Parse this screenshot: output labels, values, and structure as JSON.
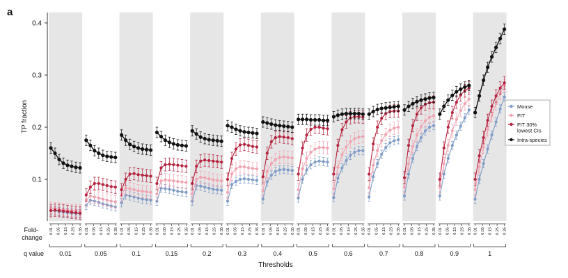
{
  "panel_label": "a",
  "chart_data": {
    "type": "line",
    "title": "",
    "ylabel": "TP fraction",
    "xlabel": "Thresholds",
    "ylim": [
      0.02,
      0.42
    ],
    "yticks": [
      0.1,
      0.2,
      0.3,
      0.4
    ],
    "ytick_labels": [
      "0.1",
      "0.2",
      "0.3",
      "0.4"
    ],
    "grid": false,
    "legend_position": "right",
    "row_labels": {
      "fold_change": "Fold-\nchange",
      "q_value": "q value"
    },
    "fold_change_labels": [
      "0.01",
      "0.05",
      "0.15",
      "0.25",
      "0.35"
    ],
    "q_values": [
      "0.01",
      "0.05",
      "0.1",
      "0.15",
      "0.2",
      "0.3",
      "0.4",
      "0.5",
      "0.6",
      "0.7",
      "0.8",
      "0.9",
      "1"
    ],
    "series": [
      {
        "name": "Mouse",
        "color": "#7f9cc7",
        "err": 0.008,
        "values": [
          [
            0.04,
            0.04,
            0.038,
            0.037,
            0.036,
            0.035,
            0.034,
            0.034
          ],
          [
            0.05,
            0.06,
            0.058,
            0.056,
            0.053,
            0.051,
            0.049,
            0.047
          ],
          [
            0.055,
            0.07,
            0.068,
            0.066,
            0.064,
            0.062,
            0.061,
            0.06
          ],
          [
            0.058,
            0.083,
            0.082,
            0.081,
            0.079,
            0.077,
            0.076,
            0.075
          ],
          [
            0.058,
            0.088,
            0.087,
            0.085,
            0.083,
            0.081,
            0.08,
            0.079
          ],
          [
            0.058,
            0.09,
            0.096,
            0.1,
            0.101,
            0.1,
            0.099,
            0.098
          ],
          [
            0.062,
            0.095,
            0.108,
            0.115,
            0.118,
            0.119,
            0.118,
            0.117
          ],
          [
            0.064,
            0.1,
            0.118,
            0.128,
            0.133,
            0.135,
            0.134,
            0.133
          ],
          [
            0.065,
            0.102,
            0.122,
            0.136,
            0.146,
            0.152,
            0.155,
            0.155
          ],
          [
            0.066,
            0.105,
            0.13,
            0.148,
            0.161,
            0.17,
            0.174,
            0.176
          ],
          [
            0.068,
            0.11,
            0.14,
            0.163,
            0.18,
            0.193,
            0.2,
            0.203
          ],
          [
            0.068,
            0.11,
            0.14,
            0.165,
            0.185,
            0.202,
            0.218,
            0.233
          ],
          [
            0.062,
            0.1,
            0.13,
            0.158,
            0.185,
            0.21,
            0.235,
            0.258
          ]
        ]
      },
      {
        "name": "FIT",
        "color": "#f0a3b2",
        "err": 0.012,
        "values": [
          [
            0.045,
            0.044,
            0.043,
            0.042,
            0.041,
            0.04,
            0.04,
            0.039
          ],
          [
            0.06,
            0.068,
            0.066,
            0.064,
            0.062,
            0.06,
            0.058,
            0.057
          ],
          [
            0.07,
            0.083,
            0.082,
            0.08,
            0.078,
            0.077,
            0.076,
            0.075
          ],
          [
            0.072,
            0.097,
            0.099,
            0.098,
            0.097,
            0.096,
            0.095,
            0.094
          ],
          [
            0.072,
            0.1,
            0.104,
            0.103,
            0.101,
            0.099,
            0.098,
            0.097
          ],
          [
            0.075,
            0.11,
            0.12,
            0.124,
            0.124,
            0.122,
            0.121,
            0.12
          ],
          [
            0.078,
            0.115,
            0.13,
            0.138,
            0.142,
            0.143,
            0.142,
            0.141
          ],
          [
            0.08,
            0.12,
            0.14,
            0.152,
            0.158,
            0.161,
            0.161,
            0.16
          ],
          [
            0.082,
            0.123,
            0.147,
            0.162,
            0.172,
            0.178,
            0.181,
            0.182
          ],
          [
            0.084,
            0.127,
            0.155,
            0.174,
            0.186,
            0.194,
            0.198,
            0.2
          ],
          [
            0.085,
            0.13,
            0.163,
            0.185,
            0.201,
            0.212,
            0.219,
            0.222
          ],
          [
            0.085,
            0.13,
            0.165,
            0.193,
            0.215,
            0.232,
            0.245,
            0.254
          ],
          [
            0.08,
            0.124,
            0.162,
            0.195,
            0.222,
            0.245,
            0.265,
            0.28
          ]
        ]
      },
      {
        "name": "FIT 30% lowest CIs",
        "color": "#b5223d",
        "err": 0.012,
        "values": [
          [
            0.04,
            0.041,
            0.04,
            0.039,
            0.038,
            0.037,
            0.036,
            0.035
          ],
          [
            0.07,
            0.085,
            0.092,
            0.092,
            0.09,
            0.088,
            0.086,
            0.085
          ],
          [
            0.08,
            0.1,
            0.11,
            0.111,
            0.109,
            0.108,
            0.107,
            0.106
          ],
          [
            0.092,
            0.122,
            0.128,
            0.129,
            0.128,
            0.127,
            0.126,
            0.125
          ],
          [
            0.092,
            0.125,
            0.135,
            0.137,
            0.136,
            0.135,
            0.134,
            0.133
          ],
          [
            0.1,
            0.14,
            0.158,
            0.166,
            0.167,
            0.165,
            0.163,
            0.162
          ],
          [
            0.105,
            0.15,
            0.172,
            0.18,
            0.182,
            0.181,
            0.18,
            0.178
          ],
          [
            0.11,
            0.16,
            0.185,
            0.196,
            0.2,
            0.2,
            0.198,
            0.197
          ],
          [
            0.11,
            0.165,
            0.195,
            0.21,
            0.218,
            0.22,
            0.22,
            0.219
          ],
          [
            0.11,
            0.168,
            0.2,
            0.217,
            0.226,
            0.23,
            0.231,
            0.231
          ],
          [
            0.103,
            0.165,
            0.203,
            0.225,
            0.237,
            0.244,
            0.247,
            0.248
          ],
          [
            0.1,
            0.16,
            0.2,
            0.228,
            0.248,
            0.262,
            0.27,
            0.275
          ],
          [
            0.1,
            0.145,
            0.18,
            0.213,
            0.24,
            0.26,
            0.275,
            0.285
          ]
        ]
      },
      {
        "name": "Intra-species",
        "color": "#111111",
        "err": 0.01,
        "values": [
          [
            0.16,
            0.15,
            0.138,
            0.131,
            0.127,
            0.125,
            0.123,
            0.122
          ],
          [
            0.175,
            0.165,
            0.155,
            0.15,
            0.146,
            0.144,
            0.143,
            0.142
          ],
          [
            0.185,
            0.175,
            0.167,
            0.163,
            0.16,
            0.158,
            0.157,
            0.156
          ],
          [
            0.19,
            0.182,
            0.175,
            0.171,
            0.168,
            0.166,
            0.165,
            0.164
          ],
          [
            0.193,
            0.187,
            0.181,
            0.178,
            0.176,
            0.175,
            0.174,
            0.173
          ],
          [
            0.203,
            0.2,
            0.196,
            0.193,
            0.191,
            0.19,
            0.189,
            0.188
          ],
          [
            0.21,
            0.208,
            0.206,
            0.204,
            0.203,
            0.202,
            0.201,
            0.2
          ],
          [
            0.215,
            0.215,
            0.215,
            0.214,
            0.214,
            0.214,
            0.213,
            0.213
          ],
          [
            0.22,
            0.223,
            0.225,
            0.226,
            0.226,
            0.226,
            0.226,
            0.225
          ],
          [
            0.225,
            0.23,
            0.234,
            0.236,
            0.237,
            0.238,
            0.239,
            0.24
          ],
          [
            0.233,
            0.24,
            0.245,
            0.249,
            0.252,
            0.254,
            0.256,
            0.257
          ],
          [
            0.225,
            0.24,
            0.252,
            0.261,
            0.268,
            0.273,
            0.277,
            0.28
          ],
          [
            0.228,
            0.26,
            0.29,
            0.315,
            0.335,
            0.353,
            0.37,
            0.388
          ]
        ]
      }
    ]
  }
}
